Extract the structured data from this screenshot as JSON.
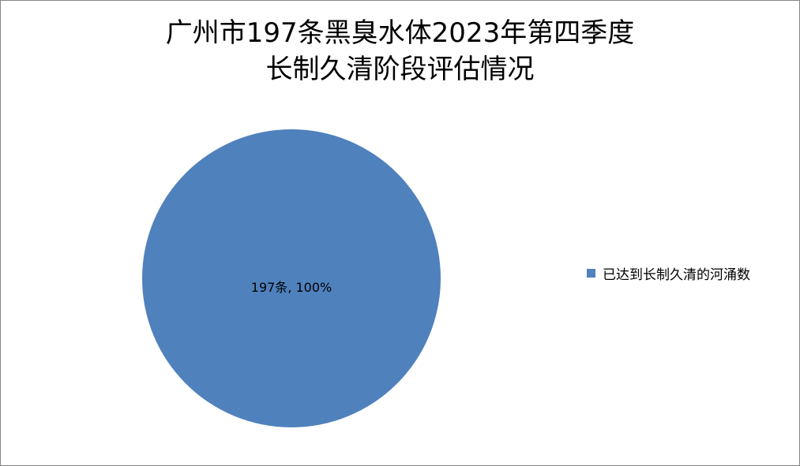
{
  "chart_data": {
    "type": "pie",
    "title_lines": [
      "广州市197条黑臭水体2023年第四季度",
      "长制久清阶段评估情况"
    ],
    "slices": [
      {
        "name": "已达到长制久清的河涌数",
        "value": 197,
        "percent": 100,
        "label": "197条, 100%",
        "color": "#4F81BD"
      }
    ],
    "legend_position": "right"
  }
}
